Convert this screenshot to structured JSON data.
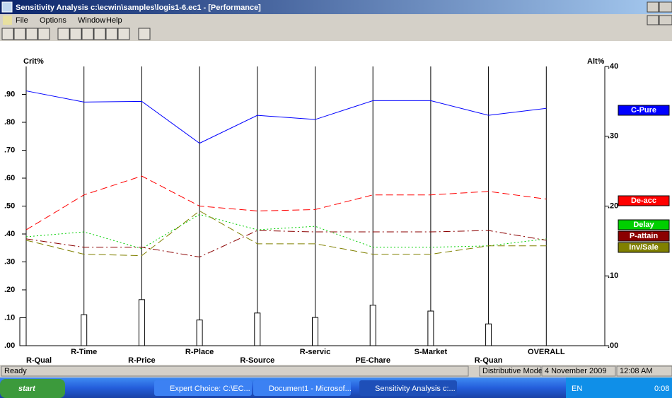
{
  "window": {
    "title": "Sensitivity Analysis c:\\ecwin\\samples\\logis1-6.ec1 - [Performance]"
  },
  "menu": [
    "File",
    "Options",
    "Window",
    "Help"
  ],
  "chart_data": {
    "type": "line",
    "ylabel": "Crit%",
    "y2label": "Alt%",
    "categories": [
      "R-Qual",
      "R-Time",
      "R-Price",
      "R-Place",
      "R-Source",
      "R-servic",
      "PE-Chare",
      "S-Market",
      "R-Quan",
      "OVERALL"
    ],
    "weights": [
      0.1,
      0.111,
      0.165,
      0.092,
      0.117,
      0.101,
      0.145,
      0.124,
      0.078,
      null
    ],
    "ylim": [
      0,
      1.0
    ],
    "yticks": [
      {
        "value": 0,
        "label": ".00"
      },
      {
        "value": 0.1,
        "label": ".10"
      },
      {
        "value": 0.2,
        "label": ".20"
      },
      {
        "value": 0.3,
        "label": ".30"
      },
      {
        "value": 0.4,
        "label": ".40"
      },
      {
        "value": 0.5,
        "label": ".50"
      },
      {
        "value": 0.6,
        "label": ".60"
      },
      {
        "value": 0.7,
        "label": ".70"
      },
      {
        "value": 0.8,
        "label": ".80"
      },
      {
        "value": 0.9,
        "label": ".90"
      }
    ],
    "y2lim": [
      0,
      0.4
    ],
    "y2ticks": [
      {
        "value": 0,
        "label": ".00"
      },
      {
        "value": 0.1,
        "label": ".10"
      },
      {
        "value": 0.2,
        "label": ".20"
      },
      {
        "value": 0.3,
        "label": ".30"
      },
      {
        "value": 0.4,
        "label": ".40"
      }
    ],
    "series": [
      {
        "name": "C-Pure",
        "color": "#0000ff",
        "style": "solid",
        "axis": "y2",
        "values": [
          0.365,
          0.349,
          0.35,
          0.29,
          0.33,
          0.324,
          0.351,
          0.351,
          0.33,
          0.34
        ]
      },
      {
        "name": "De-acc",
        "color": "#ff0000",
        "style": "dashed",
        "axis": "y2",
        "values": [
          0.166,
          0.216,
          0.243,
          0.2,
          0.193,
          0.195,
          0.216,
          0.216,
          0.221,
          0.21
        ]
      },
      {
        "name": "Delay",
        "color": "#00d000",
        "style": "dotted",
        "axis": "y2",
        "values": [
          0.156,
          0.163,
          0.139,
          0.188,
          0.166,
          0.171,
          0.141,
          0.141,
          0.143,
          0.153
        ]
      },
      {
        "name": "P-attain",
        "color": "#8b0000",
        "style": "dashdot",
        "axis": "y2",
        "values": [
          0.153,
          0.141,
          0.141,
          0.127,
          0.165,
          0.163,
          0.163,
          0.163,
          0.165,
          0.151
        ]
      },
      {
        "name": "Inv/Sale",
        "color": "#808000",
        "style": "dashed",
        "axis": "y2",
        "values": [
          0.151,
          0.131,
          0.129,
          0.193,
          0.146,
          0.146,
          0.131,
          0.131,
          0.143,
          0.143
        ]
      }
    ]
  },
  "status_bar": [
    "Ready",
    "Distributive Mode",
    "4 November 2009",
    "12:08 AM"
  ],
  "taskbar": {
    "start": "start",
    "tasks": [
      "Expert Choice: C:\\EC...",
      "Document1 - Microsof...",
      "Sensitivity Analysis c:..."
    ],
    "language": "EN",
    "clock": "0:08"
  }
}
